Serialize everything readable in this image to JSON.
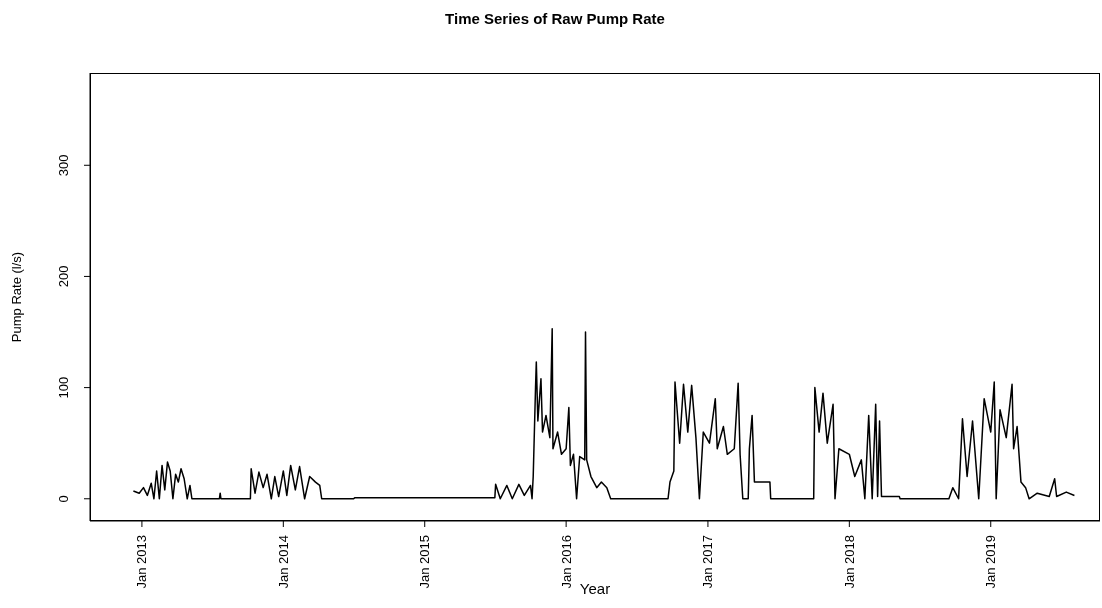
{
  "chart_data": {
    "type": "line",
    "title": "Time Series of Raw Pump Rate",
    "xlabel": "Year",
    "ylabel": "Pump Rate (l/s)",
    "xlim": [
      "2012-08-20",
      "2019-10-10"
    ],
    "xticks": [
      {
        "value": "2013-01-01",
        "label": "Jan 2013"
      },
      {
        "value": "2014-01-01",
        "label": "Jan 2014"
      },
      {
        "value": "2015-01-01",
        "label": "Jan 2015"
      },
      {
        "value": "2016-01-01",
        "label": "Jan 2016"
      },
      {
        "value": "2017-01-01",
        "label": "Jan 2017"
      },
      {
        "value": "2018-01-01",
        "label": "Jan 2018"
      },
      {
        "value": "2019-01-01",
        "label": "Jan 2019"
      }
    ],
    "ylim": [
      -20,
      383
    ],
    "yticks": [
      0,
      100,
      200,
      300
    ],
    "grid": false,
    "legend": false,
    "marker": "none",
    "line_style": "solid",
    "series": [
      {
        "color": "#000000",
        "x": [
          "2012-12-10",
          "2012-12-25",
          "2013-01-05",
          "2013-01-15",
          "2013-01-25",
          "2013-02-01",
          "2013-02-08",
          "2013-02-15",
          "2013-02-22",
          "2013-03-01",
          "2013-03-08",
          "2013-03-15",
          "2013-03-22",
          "2013-03-29",
          "2013-04-05",
          "2013-04-12",
          "2013-04-20",
          "2013-04-28",
          "2013-05-05",
          "2013-05-10",
          "2013-07-20",
          "2013-07-22",
          "2013-07-24",
          "2013-10-08",
          "2013-10-10",
          "2013-10-20",
          "2013-10-30",
          "2013-11-10",
          "2013-11-20",
          "2013-12-01",
          "2013-12-10",
          "2013-12-20",
          "2014-01-01",
          "2014-01-10",
          "2014-01-20",
          "2014-02-01",
          "2014-02-12",
          "2014-02-25",
          "2014-03-10",
          "2014-03-25",
          "2014-04-05",
          "2014-04-10",
          "2014-07-01",
          "2014-07-05",
          "2015-07-01",
          "2015-07-03",
          "2015-07-15",
          "2015-08-01",
          "2015-08-15",
          "2015-09-01",
          "2015-09-15",
          "2015-10-01",
          "2015-10-05",
          "2015-10-08",
          "2015-10-14",
          "2015-10-16",
          "2015-10-20",
          "2015-10-28",
          "2015-11-01",
          "2015-11-10",
          "2015-11-20",
          "2015-11-26",
          "2015-11-28",
          "2015-12-10",
          "2015-12-20",
          "2016-01-01",
          "2016-01-08",
          "2016-01-12",
          "2016-01-20",
          "2016-01-28",
          "2016-02-05",
          "2016-02-18",
          "2016-02-20",
          "2016-02-23",
          "2016-03-05",
          "2016-03-20",
          "2016-04-01",
          "2016-04-15",
          "2016-04-25",
          "2016-09-20",
          "2016-09-25",
          "2016-10-05",
          "2016-10-08",
          "2016-10-20",
          "2016-10-30",
          "2016-11-10",
          "2016-11-20",
          "2016-12-01",
          "2016-12-10",
          "2016-12-20",
          "2017-01-05",
          "2017-01-20",
          "2017-01-25",
          "2017-02-10",
          "2017-02-20",
          "2017-03-10",
          "2017-03-20",
          "2017-03-25",
          "2017-04-01",
          "2017-04-15",
          "2017-04-18",
          "2017-04-25",
          "2017-05-01",
          "2017-06-10",
          "2017-06-12",
          "2017-10-01",
          "2017-10-04",
          "2017-10-15",
          "2017-10-25",
          "2017-11-05",
          "2017-11-20",
          "2017-11-25",
          "2017-12-05",
          "2018-01-01",
          "2018-01-15",
          "2018-02-01",
          "2018-02-10",
          "2018-02-20",
          "2018-03-01",
          "2018-03-10",
          "2018-03-15",
          "2018-03-20",
          "2018-03-25",
          "2018-05-10",
          "2018-05-12",
          "2018-09-15",
          "2018-09-25",
          "2018-10-10",
          "2018-10-20",
          "2018-11-01",
          "2018-11-15",
          "2018-12-01",
          "2018-12-15",
          "2019-01-01",
          "2019-01-10",
          "2019-01-15",
          "2019-01-25",
          "2019-02-10",
          "2019-02-25",
          "2019-03-01",
          "2019-03-10",
          "2019-03-20",
          "2019-04-01",
          "2019-04-10",
          "2019-05-01",
          "2019-06-01",
          "2019-06-15",
          "2019-06-20",
          "2019-07-15",
          "2019-08-05"
        ],
        "values": [
          7,
          5,
          10,
          3,
          14,
          0,
          25,
          0,
          30,
          8,
          33,
          25,
          0,
          22,
          15,
          27,
          18,
          0,
          12,
          0,
          0,
          5,
          0,
          0,
          27,
          5,
          24,
          10,
          22,
          0,
          20,
          2,
          25,
          3,
          30,
          8,
          29,
          0,
          20,
          15,
          12,
          0,
          0,
          1,
          1,
          13,
          0,
          12,
          0,
          13,
          3,
          12,
          0,
          20,
          100,
          123,
          70,
          108,
          60,
          75,
          55,
          153,
          45,
          60,
          40,
          45,
          82,
          30,
          40,
          0,
          38,
          35,
          150,
          35,
          20,
          10,
          15,
          10,
          0,
          0,
          15,
          25,
          105,
          50,
          103,
          60,
          102,
          55,
          0,
          60,
          50,
          90,
          45,
          65,
          40,
          45,
          104,
          40,
          0,
          0,
          45,
          75,
          15,
          15,
          0,
          0,
          100,
          60,
          95,
          50,
          85,
          0,
          45,
          40,
          20,
          35,
          0,
          75,
          0,
          85,
          2,
          70,
          2,
          2,
          0,
          0,
          10,
          0,
          72,
          20,
          70,
          0,
          90,
          60,
          105,
          0,
          80,
          55,
          103,
          45,
          65,
          15,
          10,
          0,
          5,
          2,
          18,
          2,
          6,
          3
        ]
      }
    ]
  }
}
